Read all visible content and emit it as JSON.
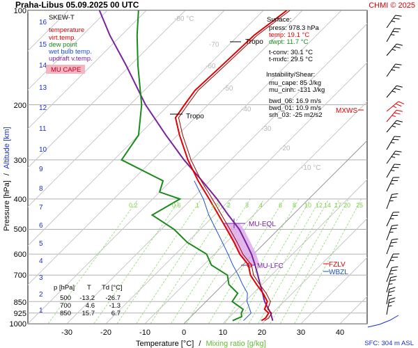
{
  "header": {
    "title": "Praha-Libus    05.09.2025 00 UTC",
    "copyright": "CHMI © 2025",
    "sfc": "SFC: 304 m ASL"
  },
  "legend": {
    "title": "SKEW-T",
    "items": [
      {
        "label": "temperature",
        "color": "#e00000"
      },
      {
        "label": "virt.temp.",
        "color": "#e00000"
      },
      {
        "label": "dew point",
        "color": "#1a8a1a"
      },
      {
        "label": "wet bulb temp.",
        "color": "#1a4fd0"
      },
      {
        "label": "updraft v.temp.",
        "color": "#7a1fa0"
      }
    ],
    "badge": "MU CAPE"
  },
  "surface": {
    "title": "Surface:",
    "lines": [
      {
        "text": "press: 978.3 hPa",
        "color": "#000000"
      },
      {
        "text": "temp: 19.1 °C",
        "color": "#e00000"
      },
      {
        "text": "dwpt: 11.7 °C",
        "color": "#1a8a1a"
      },
      {
        "text": "t-conv: 30.1 °C",
        "color": "#000000"
      },
      {
        "text": "t-mxfc: 29.5 °C",
        "color": "#000000"
      }
    ]
  },
  "instability": {
    "title": "Instability/Shear:",
    "lines": [
      "mu_cape: 85 J/kg",
      "mu_cinh: -131 J/kg",
      "bwd_06: 16.9 m/s",
      "bwd_01: 10.9 m/s",
      "srh_03: -25 m2/s2"
    ]
  },
  "table": {
    "headers": [
      "p [hPa]",
      "T",
      "Td [°C]"
    ],
    "rows": [
      [
        "500",
        "-13.2",
        "-26.7"
      ],
      [
        "700",
        "4.6",
        "-1.3"
      ],
      [
        "850",
        "15.7",
        "6.7"
      ]
    ]
  },
  "axes": {
    "xlabel": "Temperature [°C]",
    "xlabel_sep": "/",
    "xlabel2": "Mixing ratio [g/kg]",
    "ylabel": "Pressure [hPa]",
    "ylabel_sep": "/",
    "ylabel2": "Altitude [km]",
    "x_ticks": [
      "-30",
      "-20",
      "-10",
      "0",
      "10",
      "20",
      "30",
      "40"
    ],
    "p_ticks": [
      "100",
      "200",
      "300",
      "400",
      "500",
      "600",
      "700",
      "850",
      "925",
      "1000"
    ],
    "km_ticks": [
      "16",
      "15",
      "14",
      "13",
      "12",
      "11",
      "10",
      "9",
      "8",
      "7",
      "6",
      "5",
      "4",
      "3",
      "2",
      "1"
    ],
    "isotherm_labels": [
      "-80 °C",
      "-70",
      "-60",
      "-50",
      "-40",
      "-30",
      "-20",
      "-10 °C"
    ],
    "mixing_labels": [
      "0.2",
      "0.6",
      "1",
      "1.5",
      "2",
      "3",
      "4",
      "6",
      "8",
      "10",
      "12",
      "14",
      "17",
      "20",
      "25"
    ]
  },
  "annotations": {
    "tropo1": "Tropo",
    "tropo2": "Tropo",
    "mu_eql": "MU-EQL",
    "mu_lfc": "MU-LFC",
    "mxws": "MXWS",
    "fzlv": "FZLV",
    "wbzl": "WBZL"
  },
  "colors": {
    "temperature": "#e00000",
    "dewpoint": "#1a8a1a",
    "wetbulb": "#1a4fd0",
    "parcel": "#7a1fa0",
    "cape": "#d9a6e6",
    "grid": "#b0b0b0",
    "mixing": "#8fd870",
    "isotherm": "#c8c8c8",
    "hodo": "#1a2fd0"
  },
  "chart_data": {
    "type": "skew-t",
    "xlim": [
      -35,
      45
    ],
    "ylim": [
      1000,
      100
    ],
    "temperature": [
      [
        978,
        19.1
      ],
      [
        960,
        19.5
      ],
      [
        925,
        19.0
      ],
      [
        900,
        17.0
      ],
      [
        850,
        15.7
      ],
      [
        800,
        12.5
      ],
      [
        750,
        8.6
      ],
      [
        700,
        4.6
      ],
      [
        650,
        1.5
      ],
      [
        600,
        -3.5
      ],
      [
        550,
        -8.0
      ],
      [
        500,
        -13.2
      ],
      [
        450,
        -19.0
      ],
      [
        400,
        -25.5
      ],
      [
        350,
        -33.0
      ],
      [
        300,
        -41.0
      ],
      [
        250,
        -49.5
      ],
      [
        220,
        -55.0
      ],
      [
        200,
        -56.0
      ],
      [
        180,
        -57.0
      ],
      [
        150,
        -56.5
      ],
      [
        120,
        -56.0
      ],
      [
        110,
        -55.0
      ],
      [
        100,
        -54.0
      ]
    ],
    "dewpoint": [
      [
        978,
        11.7
      ],
      [
        950,
        13.0
      ],
      [
        925,
        12.0
      ],
      [
        900,
        11.5
      ],
      [
        850,
        6.7
      ],
      [
        800,
        6.0
      ],
      [
        750,
        1.5
      ],
      [
        700,
        -1.3
      ],
      [
        650,
        -8.0
      ],
      [
        600,
        -12.0
      ],
      [
        550,
        -20.0
      ],
      [
        500,
        -26.7
      ],
      [
        450,
        -36.0
      ],
      [
        400,
        -33.0
      ],
      [
        380,
        -40.0
      ],
      [
        350,
        -42.0
      ],
      [
        300,
        -58.0
      ],
      [
        250,
        -60.0
      ],
      [
        200,
        -67.0
      ],
      [
        150,
        -78.0
      ],
      [
        120,
        -86.0
      ],
      [
        100,
        -92.0
      ]
    ],
    "wetbulb": [
      [
        978,
        14.5
      ],
      [
        925,
        14.5
      ],
      [
        850,
        10.5
      ],
      [
        800,
        8.5
      ],
      [
        750,
        5.0
      ],
      [
        700,
        1.5
      ],
      [
        650,
        -2.5
      ],
      [
        600,
        -6.5
      ],
      [
        550,
        -11.0
      ],
      [
        500,
        -16.0
      ],
      [
        450,
        -21.5
      ],
      [
        400,
        -27.0
      ],
      [
        350,
        -34.0
      ]
    ],
    "parcel": [
      [
        978,
        22.0
      ],
      [
        925,
        19.5
      ],
      [
        850,
        15.0
      ],
      [
        800,
        12.4
      ],
      [
        750,
        9.5
      ],
      [
        700,
        6.5
      ],
      [
        650,
        3.2
      ],
      [
        600,
        -0.5
      ],
      [
        550,
        -5.0
      ],
      [
        500,
        -10.0
      ],
      [
        450,
        -16.5
      ],
      [
        400,
        -23.5
      ],
      [
        350,
        -32.0
      ],
      [
        300,
        -42.0
      ],
      [
        250,
        -53.0
      ],
      [
        200,
        -66.0
      ],
      [
        150,
        -81.0
      ],
      [
        120,
        -93.0
      ],
      [
        100,
        -102.0
      ]
    ],
    "levels": {
      "tropopause": [
        145,
        215
      ],
      "mu_eql": 480,
      "mu_lfc": 650,
      "fzlv": 635,
      "wbzl": 665,
      "mxws": 205
    }
  }
}
